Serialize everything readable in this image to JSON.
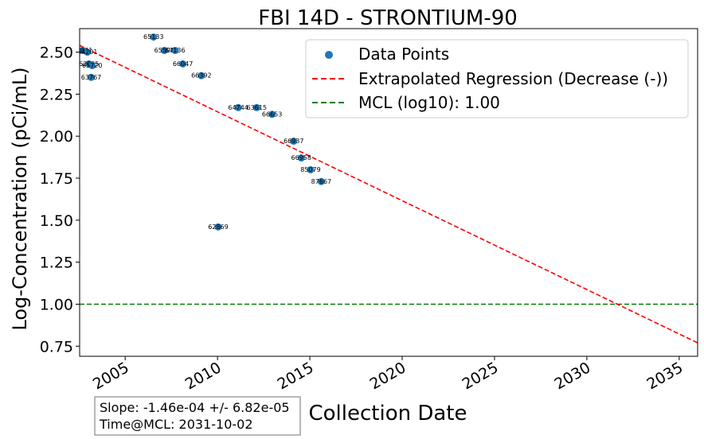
{
  "chart_data": {
    "type": "scatter",
    "title": "FBI 14D - STRONTIUM-90",
    "xlabel": "Collection Date",
    "ylabel": "Log-Concentration (pCi/mL)",
    "x_range": [
      "2002-07-15",
      "2036-01-01"
    ],
    "ylim": [
      0.69,
      2.64
    ],
    "x_ticks": [
      "2005",
      "2010",
      "2015",
      "2020",
      "2025",
      "2030",
      "2035"
    ],
    "y_ticks": [
      "0.75",
      "1.00",
      "1.25",
      "1.50",
      "1.75",
      "2.00",
      "2.25",
      "2.50"
    ],
    "grid": false,
    "legend_position": "top-right",
    "legend": {
      "points": "Data Points",
      "regression": "Extrapolated Regression (Decrease (-))",
      "mcl": "MCL (log10): 1.00"
    },
    "colors": {
      "points": "#1f77b4",
      "regression": "#ff0000",
      "mcl": "#008000"
    },
    "series": [
      {
        "name": "Data Points",
        "points": [
          {
            "date": "2002-09-10",
            "value": 2.51,
            "label": "62831"
          },
          {
            "date": "2002-12-15",
            "value": 2.5,
            "label": "64201"
          },
          {
            "date": "2003-01-15",
            "value": 2.43,
            "label": "62995"
          },
          {
            "date": "2003-03-20",
            "value": 2.42,
            "label": "65720"
          },
          {
            "date": "2003-03-01",
            "value": 2.35,
            "label": "63767"
          },
          {
            "date": "2006-07-15",
            "value": 2.59,
            "label": "65133"
          },
          {
            "date": "2007-02-15",
            "value": 2.51,
            "label": "65596"
          },
          {
            "date": "2007-09-15",
            "value": 2.51,
            "label": "67136"
          },
          {
            "date": "2008-02-15",
            "value": 2.43,
            "label": "66047"
          },
          {
            "date": "2009-02-15",
            "value": 2.36,
            "label": "66392"
          },
          {
            "date": "2011-02-15",
            "value": 2.17,
            "label": "64744"
          },
          {
            "date": "2012-02-15",
            "value": 2.17,
            "label": "63615"
          },
          {
            "date": "2012-12-15",
            "value": 2.13,
            "label": "66653"
          },
          {
            "date": "2014-02-15",
            "value": 1.97,
            "label": "66937"
          },
          {
            "date": "2014-07-15",
            "value": 1.87,
            "label": "66958"
          },
          {
            "date": "2015-01-15",
            "value": 1.8,
            "label": "85079"
          },
          {
            "date": "2015-08-15",
            "value": 1.73,
            "label": "87667"
          },
          {
            "date": "2010-01-15",
            "value": 1.46,
            "label": "62869"
          }
        ]
      }
    ],
    "regression_line": [
      {
        "date": "2002-07-15",
        "value": 2.54
      },
      {
        "date": "2036-01-01",
        "value": 0.77
      }
    ],
    "mcl_value": 1.0,
    "annotation": {
      "slope": "Slope: -1.46e-04 +/- 6.82e-05",
      "time_at_mcl": "Time@MCL: 2031-10-02"
    }
  }
}
